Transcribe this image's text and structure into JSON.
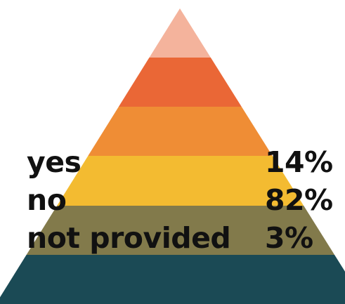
{
  "chart_data": {
    "type": "pyramid",
    "layer_colors": [
      "#f4b39c",
      "#ea6736",
      "#ef8d35",
      "#f3bb31",
      "#827a4b",
      "#1b4a55"
    ],
    "categories": [
      "yes",
      "no",
      "not provided"
    ],
    "values": [
      "14%",
      "82%",
      "3%"
    ]
  }
}
